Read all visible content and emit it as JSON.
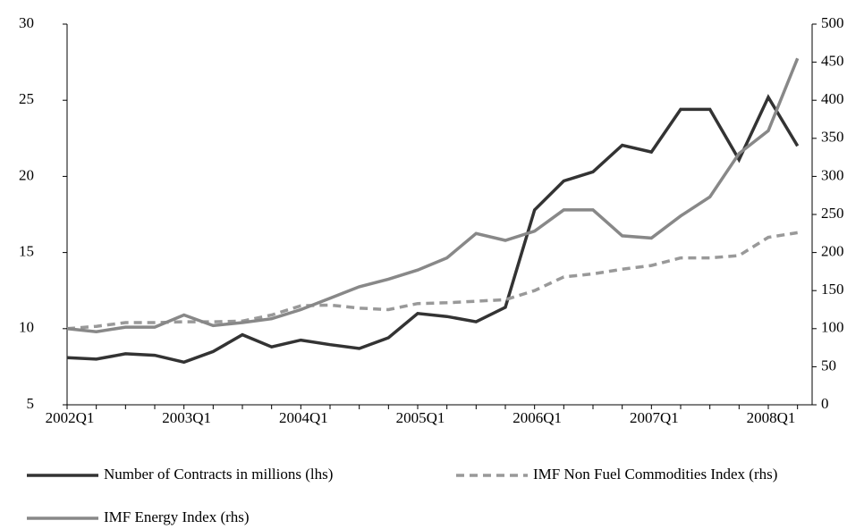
{
  "chart_data": {
    "type": "line",
    "categories": [
      "2002Q1",
      null,
      null,
      null,
      "2003Q1",
      null,
      null,
      null,
      "2004Q1",
      null,
      null,
      null,
      "2005Q1",
      null,
      null,
      null,
      "2006Q1",
      null,
      null,
      null,
      "2007Q1",
      null,
      null,
      null,
      "2008Q1",
      null
    ],
    "ylim": [
      5,
      30
    ],
    "yticks": [
      5,
      10,
      15,
      20,
      25,
      30
    ],
    "y2lim": [
      0,
      500
    ],
    "y2ticks": [
      0,
      50,
      100,
      150,
      200,
      250,
      300,
      350,
      400,
      450,
      500
    ],
    "series": [
      {
        "name": "Number of Contracts in millions (lhs)",
        "color": "#333333",
        "dash": false,
        "values": [
          8.1,
          8.0,
          8.35,
          8.25,
          7.8,
          8.5,
          9.6,
          8.8,
          9.25,
          8.95,
          8.7,
          9.4,
          11.0,
          10.8,
          10.45,
          11.4,
          17.8,
          19.7,
          20.3,
          22.05,
          21.6,
          24.4,
          24.4,
          21.1,
          25.2,
          22.0
        ]
      },
      {
        "name": "IMF Non Fuel Commodities Index (rhs)",
        "color": "#999999",
        "dash": true,
        "axis": "y2",
        "values": [
          100,
          103,
          108,
          108,
          109,
          109,
          110,
          118,
          130,
          131,
          127,
          125,
          133,
          134,
          136,
          138,
          150,
          168,
          172,
          178,
          183,
          193,
          193,
          196,
          220,
          226
        ]
      },
      {
        "name": "IMF Energy Index (rhs)",
        "color": "#888888",
        "dash": false,
        "axis": "y2",
        "values": [
          100,
          96,
          102,
          102,
          118,
          104,
          108,
          113,
          125,
          140,
          155,
          165,
          177,
          193,
          225,
          216,
          228,
          256,
          256,
          222,
          219,
          248,
          273,
          330,
          360,
          455
        ]
      }
    ]
  }
}
